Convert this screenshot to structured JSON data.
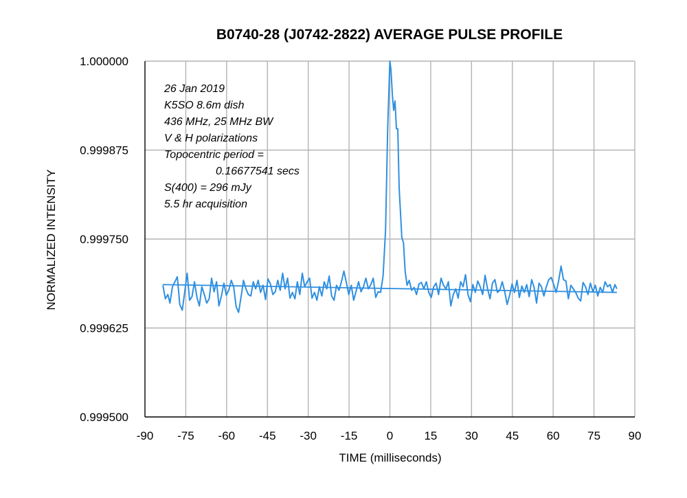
{
  "chart_data": {
    "type": "line",
    "title": "B0740-28 (J0742-2822) AVERAGE PULSE PROFILE",
    "xlabel": "TIME (milliseconds)",
    "ylabel": "NORMALIZED INTENSITY",
    "xlim": [
      -90,
      90
    ],
    "ylim": [
      0.9995,
      1.0
    ],
    "x_ticks": [
      "-90",
      "-75",
      "-60",
      "-45",
      "-30",
      "-15",
      "0",
      "15",
      "30",
      "45",
      "60",
      "75",
      "90"
    ],
    "y_ticks": [
      "1.000000",
      "0.999875",
      "0.999750",
      "0.999625",
      "0.999500"
    ],
    "y_tick_values": [
      1.0,
      0.999875,
      0.99975,
      0.999625,
      0.9995
    ],
    "grid": true,
    "legend": "none",
    "series_color": "#2f8fe0",
    "annotations": [
      "26 Jan 2019",
      "K5SO 8.6m dish",
      "436 MHz, 25 MHz BW",
      "V & H polarizations",
      "Topocentric period =",
      "0.16677541 secs",
      "S(400) = 296 mJy",
      "5.5 hr acquisition"
    ],
    "series": [
      {
        "x": [
          -83.4,
          -82.5,
          -81.6,
          -80.8,
          -79.9,
          -79.0,
          -78.1,
          -77.2,
          -76.3,
          -75.4,
          -74.5,
          -73.6,
          -72.7,
          -71.8,
          -70.9,
          -70.0,
          -69.1,
          -68.2,
          -67.3,
          -66.4,
          -65.5,
          -64.6,
          -63.7,
          -62.8,
          -61.9,
          -61.0,
          -60.1,
          -59.2,
          -58.3,
          -57.4,
          -56.5,
          -55.6,
          -54.7,
          -53.8,
          -52.9,
          -52.0,
          -51.1,
          -50.2,
          -49.3,
          -48.4,
          -47.5,
          -46.6,
          -45.7,
          -44.8,
          -43.9,
          -43.0,
          -42.1,
          -41.2,
          -40.3,
          -39.4,
          -38.5,
          -37.6,
          -36.7,
          -35.8,
          -34.9,
          -34.0,
          -33.1,
          -32.2,
          -31.3,
          -30.4,
          -29.5,
          -28.6,
          -27.7,
          -26.8,
          -25.9,
          -25.0,
          -24.1,
          -23.2,
          -22.3,
          -21.4,
          -20.5,
          -19.6,
          -18.7,
          -17.8,
          -16.9,
          -16.0,
          -15.1,
          -14.2,
          -13.3,
          -12.4,
          -11.5,
          -10.6,
          -9.7,
          -8.8,
          -7.9,
          -7.0,
          -6.1,
          -5.2,
          -4.3,
          -3.4,
          -2.5,
          -1.6,
          -0.8,
          0.0,
          0.4,
          0.9,
          1.4,
          1.9,
          2.4,
          2.9,
          3.4,
          3.9,
          4.4,
          5.0,
          5.6,
          6.3,
          7.1,
          8.0,
          8.9,
          9.8,
          10.7,
          11.6,
          12.5,
          13.4,
          14.3,
          15.2,
          16.1,
          17.0,
          17.9,
          18.8,
          19.7,
          20.6,
          21.5,
          22.4,
          23.3,
          24.2,
          25.1,
          26.0,
          26.9,
          27.8,
          28.7,
          29.6,
          30.5,
          31.4,
          32.3,
          33.2,
          34.1,
          35.0,
          35.9,
          36.8,
          37.7,
          38.6,
          39.5,
          40.4,
          41.3,
          42.2,
          43.1,
          44.0,
          44.9,
          45.8,
          46.7,
          47.6,
          48.5,
          49.4,
          50.3,
          51.2,
          52.1,
          53.0,
          53.9,
          54.8,
          55.7,
          56.6,
          57.5,
          58.4,
          59.3,
          60.2,
          61.1,
          62.0,
          62.9,
          63.8,
          64.7,
          65.6,
          66.5,
          67.4,
          68.3,
          69.2,
          70.1,
          71.0,
          71.9,
          72.8,
          73.7,
          74.6,
          75.5,
          76.4,
          77.3,
          78.2,
          79.1,
          80.0,
          80.9,
          81.8,
          82.7,
          83.4
        ],
        "y": [
          0.999685,
          0.999666,
          0.999672,
          0.99966,
          0.999683,
          0.99969,
          0.999697,
          0.999658,
          0.99965,
          0.999675,
          0.999702,
          0.999664,
          0.999669,
          0.99969,
          0.999668,
          0.999656,
          0.999683,
          0.999672,
          0.99966,
          0.999666,
          0.999695,
          0.999676,
          0.99969,
          0.999656,
          0.99967,
          0.999688,
          0.999671,
          0.999678,
          0.999692,
          0.999683,
          0.999655,
          0.999647,
          0.999668,
          0.999692,
          0.99968,
          0.999672,
          0.99967,
          0.99969,
          0.99968,
          0.999692,
          0.999675,
          0.999685,
          0.999665,
          0.999694,
          0.999687,
          0.999672,
          0.999676,
          0.999692,
          0.999678,
          0.999702,
          0.99968,
          0.999695,
          0.999667,
          0.999675,
          0.999666,
          0.99969,
          0.999672,
          0.999702,
          0.999683,
          0.99969,
          0.999695,
          0.999667,
          0.999675,
          0.999664,
          0.999683,
          0.99967,
          0.99969,
          0.99968,
          0.999698,
          0.99967,
          0.999664,
          0.999685,
          0.999678,
          0.99969,
          0.999705,
          0.999689,
          0.999672,
          0.999685,
          0.999664,
          0.999677,
          0.99969,
          0.999676,
          0.999683,
          0.999695,
          0.99968,
          0.999686,
          0.999695,
          0.999668,
          0.999676,
          0.999675,
          0.999698,
          0.999762,
          0.999905,
          1.0,
          0.999988,
          0.999953,
          0.999931,
          0.999944,
          0.999905,
          0.999905,
          0.999822,
          0.999788,
          0.999752,
          0.999745,
          0.999705,
          0.999685,
          0.999692,
          0.999678,
          0.999682,
          0.999672,
          0.999687,
          0.999689,
          0.99968,
          0.99969,
          0.999675,
          0.999668,
          0.999683,
          0.999688,
          0.999672,
          0.999695,
          0.999685,
          0.99968,
          0.99969,
          0.999656,
          0.999672,
          0.99968,
          0.999667,
          0.99969,
          0.999683,
          0.9997,
          0.999672,
          0.999662,
          0.999686,
          0.999675,
          0.999691,
          0.999683,
          0.999672,
          0.999699,
          0.99968,
          0.999666,
          0.999688,
          0.999693,
          0.999675,
          0.999678,
          0.99969,
          0.999676,
          0.999658,
          0.999671,
          0.999687,
          0.999675,
          0.999692,
          0.999668,
          0.999684,
          0.999675,
          0.999686,
          0.999669,
          0.999693,
          0.999682,
          0.99966,
          0.999688,
          0.999683,
          0.99967,
          0.999683,
          0.999693,
          0.999696,
          0.999686,
          0.999675,
          0.999691,
          0.999712,
          0.999693,
          0.999691,
          0.999666,
          0.999685,
          0.99968,
          0.999675,
          0.999667,
          0.999663,
          0.999689,
          0.999683,
          0.999672,
          0.999688,
          0.999676,
          0.999685,
          0.99967,
          0.999682,
          0.999675,
          0.99969,
          0.999683,
          0.999686,
          0.999675,
          0.999686,
          0.99968
        ]
      },
      {
        "x": [
          -83.4,
          83.4
        ],
        "y": [
          0.999686,
          0.999675
        ]
      }
    ]
  }
}
